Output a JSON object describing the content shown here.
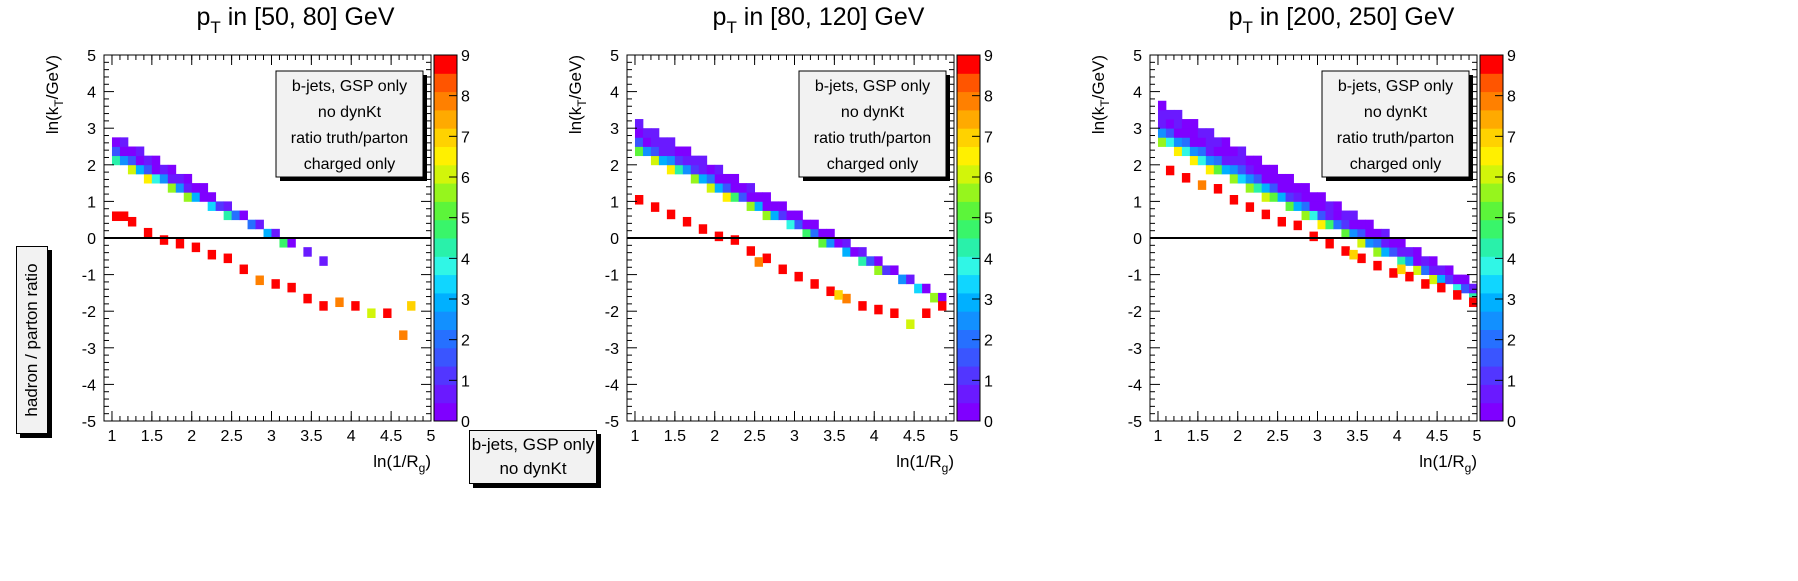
{
  "side_label": "hadron / parton ratio",
  "bottom_legend": [
    "b-jets, GSP only",
    "no dynKt"
  ],
  "palette": [
    "#7f00ff",
    "#6a1aff",
    "#5236ff",
    "#3a55ff",
    "#2670ff",
    "#1290ff",
    "#00b0ff",
    "#10d6ff",
    "#30f6e6",
    "#29f1aa",
    "#39f56a",
    "#5cf53a",
    "#96f51d",
    "#d2f50a",
    "#fff000",
    "#ffd200",
    "#ffaa00",
    "#ff8000",
    "#ff5500",
    "#ff0000"
  ],
  "chart_data": [
    {
      "type": "heatmap",
      "title": "p_T in [50, 80] GeV",
      "title_main": "p",
      "title_sub": "T",
      "title_rest": " in [50, 80] GeV",
      "xlabel": "ln(1/R_g)",
      "ylabel": "ln(k_T/GeV)",
      "xlim": [
        0.9,
        5
      ],
      "ylim": [
        -5,
        5
      ],
      "zlim": [
        0,
        9
      ],
      "x_ticks": [
        1,
        1.5,
        2,
        2.5,
        3,
        3.5,
        4,
        4.5,
        5
      ],
      "y_ticks": [
        -5,
        -4,
        -3,
        -2,
        -1,
        0,
        1,
        2,
        3,
        4,
        5
      ],
      "z_ticks": [
        0,
        1,
        2,
        3,
        4,
        5,
        6,
        7,
        8,
        9
      ],
      "reference_line_y": 0,
      "legend": [
        "b-jets, GSP only",
        "no dynKt",
        "ratio truth/parton",
        "charged only"
      ],
      "band": {
        "top_intercept": 4.13,
        "top_slope": -1.31,
        "bottom_intercept": 3.08,
        "bottom_slope": -1.04,
        "x_end": 4.92
      },
      "hot_cells": [
        [
          1.0,
          0.6,
          9
        ],
        [
          1.1,
          0.6,
          9
        ],
        [
          1.2,
          0.45,
          9
        ],
        [
          1.4,
          0.15,
          9
        ],
        [
          1.6,
          -0.05,
          9
        ],
        [
          1.8,
          -0.15,
          9
        ],
        [
          2.0,
          -0.25,
          9
        ],
        [
          2.2,
          -0.45,
          9
        ],
        [
          2.4,
          -0.55,
          9
        ],
        [
          2.6,
          -0.85,
          9
        ],
        [
          2.8,
          -1.15,
          8
        ],
        [
          3.0,
          -1.25,
          9
        ],
        [
          3.2,
          -1.35,
          9
        ],
        [
          3.4,
          -1.65,
          9
        ],
        [
          3.6,
          -1.85,
          9
        ],
        [
          3.8,
          -1.75,
          8
        ],
        [
          4.0,
          -1.85,
          9
        ],
        [
          4.2,
          -2.05,
          6
        ],
        [
          4.4,
          -2.05,
          9
        ],
        [
          4.6,
          -2.65,
          8
        ],
        [
          4.7,
          -1.85,
          7
        ]
      ]
    },
    {
      "type": "heatmap",
      "title": "p_T in [80, 120] GeV",
      "title_main": "p",
      "title_sub": "T",
      "title_rest": " in [80, 120] GeV",
      "xlabel": "ln(1/R_g)",
      "ylabel": "ln(k_T/GeV)",
      "xlim": [
        0.9,
        5
      ],
      "ylim": [
        -5,
        5
      ],
      "zlim": [
        0,
        9
      ],
      "x_ticks": [
        1,
        1.5,
        2,
        2.5,
        3,
        3.5,
        4,
        4.5,
        5
      ],
      "y_ticks": [
        -5,
        -4,
        -3,
        -2,
        -1,
        0,
        1,
        2,
        3,
        4,
        5
      ],
      "z_ticks": [
        0,
        1,
        2,
        3,
        4,
        5,
        6,
        7,
        8,
        9
      ],
      "reference_line_y": 0,
      "legend": [
        "b-jets, GSP only",
        "no dynKt",
        "ratio truth/parton",
        "charged only"
      ],
      "band": {
        "top_intercept": 4.45,
        "top_slope": -1.25,
        "bottom_intercept": 3.35,
        "bottom_slope": -1.06,
        "x_end": 4.92
      },
      "hot_cells": [
        [
          1.0,
          1.05,
          9
        ],
        [
          1.2,
          0.85,
          9
        ],
        [
          1.4,
          0.65,
          9
        ],
        [
          1.6,
          0.45,
          9
        ],
        [
          1.8,
          0.25,
          9
        ],
        [
          2.0,
          0.05,
          9
        ],
        [
          2.2,
          -0.05,
          9
        ],
        [
          2.4,
          -0.35,
          9
        ],
        [
          2.6,
          -0.55,
          9
        ],
        [
          2.8,
          -0.85,
          9
        ],
        [
          3.0,
          -1.05,
          9
        ],
        [
          3.2,
          -1.25,
          9
        ],
        [
          3.4,
          -1.45,
          9
        ],
        [
          3.6,
          -1.65,
          8
        ],
        [
          3.8,
          -1.85,
          9
        ],
        [
          4.0,
          -1.95,
          9
        ],
        [
          4.2,
          -2.05,
          9
        ],
        [
          4.4,
          -2.35,
          6
        ],
        [
          4.6,
          -2.05,
          9
        ],
        [
          4.8,
          -1.85,
          9
        ],
        [
          3.5,
          -1.55,
          7
        ],
        [
          2.5,
          -0.65,
          8
        ]
      ]
    },
    {
      "type": "heatmap",
      "title": "p_T in [200, 250] GeV",
      "title_main": "p",
      "title_sub": "T",
      "title_rest": " in [200, 250] GeV",
      "xlabel": "ln(1/R_g)",
      "ylabel": "ln(k_T/GeV)",
      "xlim": [
        0.9,
        5
      ],
      "ylim": [
        -5,
        5
      ],
      "zlim": [
        0,
        9
      ],
      "x_ticks": [
        1,
        1.5,
        2,
        2.5,
        3,
        3.5,
        4,
        4.5,
        5
      ],
      "y_ticks": [
        -5,
        -4,
        -3,
        -2,
        -1,
        0,
        1,
        2,
        3,
        4,
        5
      ],
      "z_ticks": [
        0,
        1,
        2,
        3,
        4,
        5,
        6,
        7,
        8,
        9
      ],
      "reference_line_y": 0,
      "legend": [
        "b-jets, GSP only",
        "no dynKt",
        "ratio truth/parton",
        "charged only"
      ],
      "band": {
        "top_intercept": 4.95,
        "top_slope": -1.25,
        "bottom_intercept": 3.6,
        "bottom_slope": -1.08,
        "x_end": 4.97
      },
      "hot_cells": [
        [
          1.1,
          1.85,
          9
        ],
        [
          1.3,
          1.65,
          9
        ],
        [
          1.5,
          1.45,
          8
        ],
        [
          1.7,
          1.35,
          9
        ],
        [
          1.9,
          1.05,
          9
        ],
        [
          2.1,
          0.85,
          9
        ],
        [
          2.3,
          0.65,
          9
        ],
        [
          2.5,
          0.45,
          9
        ],
        [
          2.7,
          0.35,
          9
        ],
        [
          2.9,
          0.05,
          9
        ],
        [
          3.1,
          -0.15,
          9
        ],
        [
          3.3,
          -0.35,
          9
        ],
        [
          3.5,
          -0.55,
          9
        ],
        [
          3.7,
          -0.75,
          9
        ],
        [
          3.9,
          -0.95,
          9
        ],
        [
          4.1,
          -1.05,
          9
        ],
        [
          4.3,
          -1.25,
          9
        ],
        [
          4.5,
          -1.35,
          9
        ],
        [
          4.7,
          -1.55,
          9
        ],
        [
          4.9,
          -1.75,
          9
        ],
        [
          3.4,
          -0.45,
          7
        ],
        [
          4.0,
          -0.85,
          7
        ]
      ]
    }
  ]
}
